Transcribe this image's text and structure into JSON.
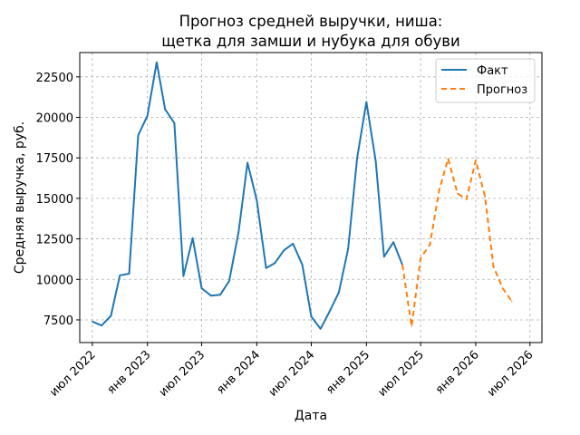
{
  "chart_data": {
    "type": "line",
    "title_line1": "Прогноз средней выручки, ниша:",
    "title_line2": "щетка для замши и нубука для обуви",
    "xlabel": "Дата",
    "ylabel": "Средняя выручка, руб.",
    "grid": true,
    "legend_position": "top-right",
    "xlim": [
      "2022-05-20",
      "2026-08-10"
    ],
    "ylim": [
      6100,
      24000
    ],
    "x_ticks": [
      {
        "date": "2022-07-01",
        "label": "июл 2022"
      },
      {
        "date": "2023-01-01",
        "label": "янв 2023"
      },
      {
        "date": "2023-07-01",
        "label": "июл 2023"
      },
      {
        "date": "2024-01-01",
        "label": "янв 2024"
      },
      {
        "date": "2024-07-01",
        "label": "июл 2024"
      },
      {
        "date": "2025-01-01",
        "label": "янв 2025"
      },
      {
        "date": "2025-07-01",
        "label": "июл 2025"
      },
      {
        "date": "2026-01-01",
        "label": "янв 2026"
      },
      {
        "date": "2026-07-01",
        "label": "июл 2026"
      }
    ],
    "y_ticks": [
      7500,
      10000,
      12500,
      15000,
      17500,
      20000,
      22500
    ],
    "series": [
      {
        "name": "Факт",
        "color": "#1f77b4",
        "style": "solid",
        "points": [
          {
            "x": "2022-07-01",
            "y": 7400
          },
          {
            "x": "2022-08-01",
            "y": 7150
          },
          {
            "x": "2022-09-01",
            "y": 7750
          },
          {
            "x": "2022-10-01",
            "y": 10250
          },
          {
            "x": "2022-11-01",
            "y": 10350
          },
          {
            "x": "2022-12-01",
            "y": 18900
          },
          {
            "x": "2023-01-01",
            "y": 20100
          },
          {
            "x": "2023-02-01",
            "y": 23400
          },
          {
            "x": "2023-03-01",
            "y": 20500
          },
          {
            "x": "2023-04-01",
            "y": 19650
          },
          {
            "x": "2023-05-01",
            "y": 10200
          },
          {
            "x": "2023-06-01",
            "y": 12550
          },
          {
            "x": "2023-07-01",
            "y": 9450
          },
          {
            "x": "2023-08-01",
            "y": 9000
          },
          {
            "x": "2023-09-01",
            "y": 9050
          },
          {
            "x": "2023-10-01",
            "y": 9900
          },
          {
            "x": "2023-11-01",
            "y": 12900
          },
          {
            "x": "2023-12-01",
            "y": 17200
          },
          {
            "x": "2024-01-01",
            "y": 14900
          },
          {
            "x": "2024-02-01",
            "y": 10700
          },
          {
            "x": "2024-03-01",
            "y": 11000
          },
          {
            "x": "2024-04-01",
            "y": 11800
          },
          {
            "x": "2024-05-01",
            "y": 12200
          },
          {
            "x": "2024-06-01",
            "y": 10900
          },
          {
            "x": "2024-07-01",
            "y": 7700
          },
          {
            "x": "2024-08-01",
            "y": 6950
          },
          {
            "x": "2024-09-01",
            "y": 8050
          },
          {
            "x": "2024-10-01",
            "y": 9200
          },
          {
            "x": "2024-11-01",
            "y": 11900
          },
          {
            "x": "2024-12-01",
            "y": 17500
          },
          {
            "x": "2025-01-01",
            "y": 20950
          },
          {
            "x": "2025-02-01",
            "y": 17300
          },
          {
            "x": "2025-03-01",
            "y": 11400
          },
          {
            "x": "2025-04-01",
            "y": 12300
          },
          {
            "x": "2025-05-01",
            "y": 10900
          }
        ]
      },
      {
        "name": "Прогноз",
        "color": "#ff7f0e",
        "style": "dashed",
        "points": [
          {
            "x": "2025-05-01",
            "y": 10900
          },
          {
            "x": "2025-06-01",
            "y": 7100
          },
          {
            "x": "2025-07-01",
            "y": 11300
          },
          {
            "x": "2025-08-01",
            "y": 12150
          },
          {
            "x": "2025-09-01",
            "y": 15500
          },
          {
            "x": "2025-10-01",
            "y": 17450
          },
          {
            "x": "2025-11-01",
            "y": 15300
          },
          {
            "x": "2025-12-01",
            "y": 14950
          },
          {
            "x": "2026-01-01",
            "y": 17350
          },
          {
            "x": "2026-02-01",
            "y": 15100
          },
          {
            "x": "2026-03-01",
            "y": 10800
          },
          {
            "x": "2026-04-01",
            "y": 9450
          },
          {
            "x": "2026-05-01",
            "y": 8650
          }
        ]
      }
    ]
  }
}
